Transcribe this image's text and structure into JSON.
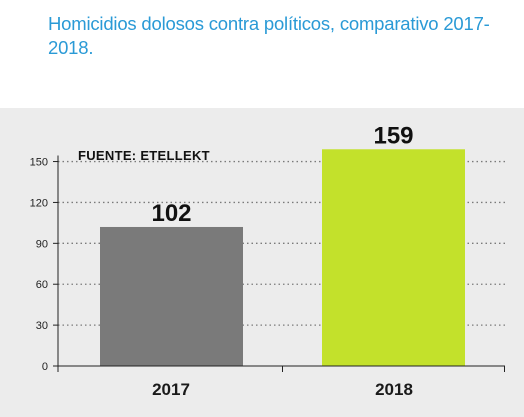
{
  "title": "Homicidios dolosos contra políticos, comparativo 2017-2018.",
  "source": "FUENTE: ETELLEKT",
  "colors": {
    "title": "#2a9ad6",
    "panel_bg": "#ececec",
    "bar_2017": "#7a7a7a",
    "bar_2018": "#c3e12b",
    "gridline": "#7a7a7a"
  },
  "chart_data": {
    "type": "bar",
    "categories": [
      "2017",
      "2018"
    ],
    "values": [
      102,
      159
    ],
    "data_labels": [
      "102",
      "159"
    ],
    "title": "Homicidios dolosos contra políticos, comparativo 2017-2018.",
    "xlabel": "",
    "ylabel": "",
    "ylim": [
      0,
      159
    ],
    "yticks": [
      0,
      30,
      60,
      90,
      120,
      150
    ],
    "grid": true,
    "annotation": "FUENTE: ETELLEKT"
  }
}
